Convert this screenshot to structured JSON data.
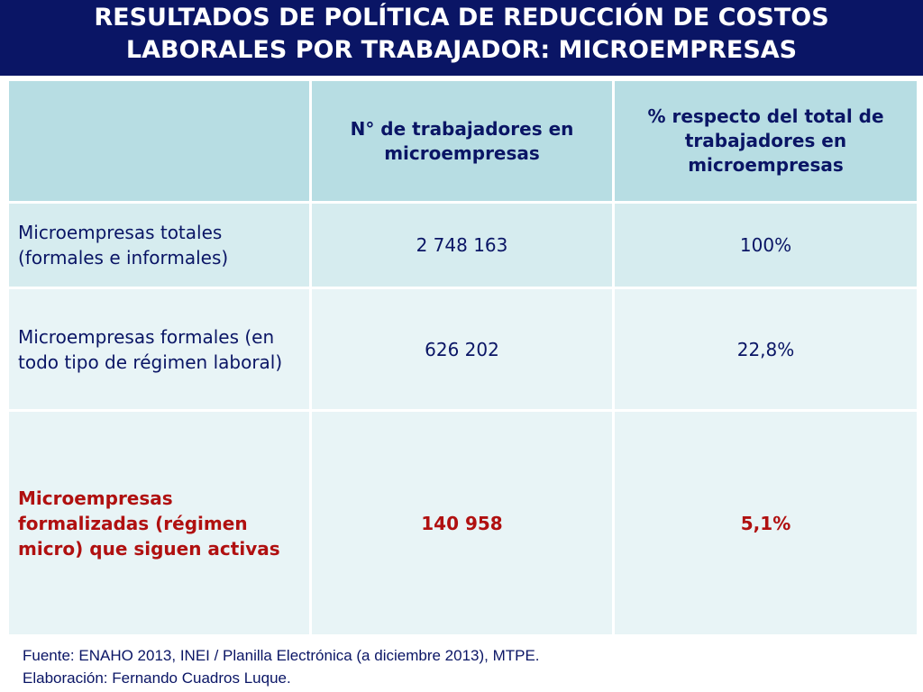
{
  "title": {
    "line1": "RESULTADOS DE POLÍTICA DE REDUCCIÓN DE COSTOS",
    "line2": "LABORALES POR TRABAJADOR: MICROEMPRESAS"
  },
  "table": {
    "headers": [
      "",
      "N° de trabajadores en microempresas",
      "% respecto del total de trabajadores en microempresas"
    ],
    "rows": [
      {
        "label": "Microempresas totales (formales e informales)",
        "workers": "2 748 163",
        "percent": "100%"
      },
      {
        "label": "Microempresas formales (en todo tipo de régimen laboral)",
        "workers": "626 202",
        "percent": "22,8%"
      },
      {
        "label": "Microempresas formalizadas (régimen micro) que siguen activas",
        "workers": "140 958",
        "percent": "5,1%"
      }
    ]
  },
  "footer": {
    "source": "Fuente: ENAHO 2013, INEI / Planilla Electrónica (a diciembre 2013), MTPE.",
    "author": "Elaboración: Fernando Cuadros Luque."
  },
  "colors": {
    "title_bg": "#0a1565",
    "header_bg": "#b7dde3",
    "row_dark": "#d6ecef",
    "row_light": "#e8f4f6",
    "text": "#0a1565",
    "highlight": "#b01010"
  }
}
